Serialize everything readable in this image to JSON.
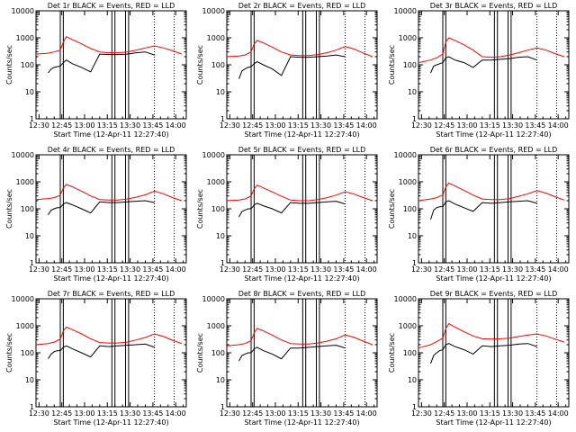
{
  "chart_data": {
    "type": "line",
    "layout": "3x3 grid",
    "y_scale": "log",
    "ylim": [
      1,
      10000
    ],
    "yticks": [
      "1",
      "10",
      "100",
      "1000",
      "10000"
    ],
    "xticks": [
      "12:30",
      "12:45",
      "13:00",
      "13:15",
      "13:30",
      "13:45",
      "14:00"
    ],
    "xlabel": "Start Time (12-Apr-11 12:27:40)",
    "ylabel": "Counts/sec",
    "colors": {
      "events": "#000000",
      "lld": "#ff0000"
    },
    "panels": [
      {
        "title": "Det 1r BLACK = Events, RED = LLD",
        "vlines": [
          "12:44",
          "12:46",
          "13:18",
          "13:20",
          "13:27",
          "13:29"
        ],
        "dotted": [
          "13:46",
          "13:59"
        ],
        "series": [
          {
            "name": "Events",
            "x": [
              "12:36",
              "12:38",
              "12:40",
              "12:42",
              "12:44",
              "12:46",
              "12:48",
              "12:52",
              "12:58",
              "13:04",
              "13:10",
              "13:16",
              "13:22",
              "13:28",
              "13:34",
              "13:40",
              "13:46"
            ],
            "y": [
              50,
              70,
              80,
              85,
              90,
              120,
              150,
              110,
              80,
              55,
              250,
              240,
              240,
              250,
              280,
              300,
              230
            ]
          },
          {
            "name": "LLD",
            "x": [
              "12:28",
              "12:36",
              "12:40",
              "12:44",
              "12:46",
              "12:48",
              "12:52",
              "12:58",
              "13:04",
              "13:10",
              "13:16",
              "13:22",
              "13:28",
              "13:34",
              "13:40",
              "13:46",
              "13:52",
              "13:58",
              "14:04"
            ],
            "y": [
              250,
              270,
              300,
              350,
              700,
              1100,
              850,
              600,
              400,
              300,
              280,
              280,
              300,
              350,
              420,
              500,
              420,
              330,
              250
            ]
          }
        ]
      },
      {
        "title": "Det 2r BLACK = Events, RED = LLD",
        "vlines": [
          "12:44",
          "12:46",
          "13:18",
          "13:20",
          "13:27",
          "13:29"
        ],
        "dotted": [
          "13:46",
          "13:59"
        ],
        "series": [
          {
            "name": "Events",
            "x": [
              "12:36",
              "12:38",
              "12:40",
              "12:42",
              "12:44",
              "12:46",
              "12:48",
              "12:52",
              "12:58",
              "13:04",
              "13:10",
              "13:16",
              "13:22",
              "13:28",
              "13:34",
              "13:40",
              "13:46"
            ],
            "y": [
              30,
              60,
              70,
              80,
              85,
              110,
              130,
              100,
              70,
              40,
              200,
              190,
              190,
              200,
              210,
              230,
              200
            ]
          },
          {
            "name": "LLD",
            "x": [
              "12:28",
              "12:36",
              "12:40",
              "12:44",
              "12:46",
              "12:48",
              "12:52",
              "12:58",
              "13:04",
              "13:10",
              "13:16",
              "13:22",
              "13:28",
              "13:34",
              "13:40",
              "13:46",
              "13:52",
              "13:58",
              "14:04"
            ],
            "y": [
              200,
              210,
              230,
              300,
              600,
              800,
              650,
              450,
              300,
              230,
              220,
              220,
              240,
              280,
              350,
              480,
              380,
              270,
              200
            ]
          }
        ]
      },
      {
        "title": "Det 3r BLACK = Events, RED = LLD",
        "vlines": [
          "12:44",
          "12:46",
          "13:18",
          "13:20",
          "13:27",
          "13:29"
        ],
        "dotted": [
          "13:46",
          "13:59"
        ],
        "series": [
          {
            "name": "Events",
            "x": [
              "12:36",
              "12:38",
              "12:40",
              "12:42",
              "12:44",
              "12:46",
              "12:48",
              "12:52",
              "12:58",
              "13:04",
              "13:10",
              "13:16",
              "13:22",
              "13:28",
              "13:34",
              "13:40",
              "13:46"
            ],
            "y": [
              50,
              90,
              100,
              110,
              120,
              180,
              200,
              150,
              120,
              80,
              150,
              150,
              160,
              170,
              190,
              200,
              150
            ]
          },
          {
            "name": "LLD",
            "x": [
              "12:28",
              "12:36",
              "12:40",
              "12:44",
              "12:46",
              "12:48",
              "12:52",
              "12:58",
              "13:04",
              "13:10",
              "13:16",
              "13:22",
              "13:28",
              "13:34",
              "13:40",
              "13:46",
              "13:52",
              "13:58",
              "14:04"
            ],
            "y": [
              120,
              150,
              180,
              250,
              700,
              1000,
              800,
              550,
              350,
              200,
              190,
              200,
              230,
              280,
              350,
              420,
              350,
              260,
              200
            ]
          }
        ]
      },
      {
        "title": "Det 4r BLACK = Events, RED = LLD",
        "vlines": [
          "12:44",
          "12:46",
          "13:18",
          "13:20",
          "13:27",
          "13:29"
        ],
        "dotted": [
          "13:46",
          "13:59"
        ],
        "series": [
          {
            "name": "Events",
            "x": [
              "12:36",
              "12:38",
              "12:40",
              "12:42",
              "12:44",
              "12:46",
              "12:48",
              "12:52",
              "12:58",
              "13:04",
              "13:10",
              "13:16",
              "13:22",
              "13:28",
              "13:34",
              "13:40",
              "13:46"
            ],
            "y": [
              60,
              90,
              100,
              110,
              110,
              150,
              170,
              140,
              100,
              70,
              180,
              170,
              170,
              180,
              190,
              200,
              170
            ]
          },
          {
            "name": "LLD",
            "x": [
              "12:28",
              "12:36",
              "12:40",
              "12:44",
              "12:46",
              "12:48",
              "12:52",
              "12:58",
              "13:04",
              "13:10",
              "13:16",
              "13:22",
              "13:28",
              "13:34",
              "13:40",
              "13:46",
              "13:52",
              "13:58",
              "14:04"
            ],
            "y": [
              220,
              240,
              260,
              320,
              600,
              800,
              650,
              450,
              300,
              220,
              210,
              210,
              230,
              270,
              330,
              450,
              360,
              260,
              200
            ]
          }
        ]
      },
      {
        "title": "Det 5r BLACK = Events, RED = LLD",
        "vlines": [
          "12:44",
          "12:46",
          "13:18",
          "13:20",
          "13:27",
          "13:29"
        ],
        "dotted": [
          "13:46",
          "13:59"
        ],
        "series": [
          {
            "name": "Events",
            "x": [
              "12:36",
              "12:38",
              "12:40",
              "12:42",
              "12:44",
              "12:46",
              "12:48",
              "12:52",
              "12:58",
              "13:04",
              "13:10",
              "13:16",
              "13:22",
              "13:28",
              "13:34",
              "13:40",
              "13:46"
            ],
            "y": [
              50,
              80,
              90,
              100,
              100,
              140,
              160,
              130,
              100,
              70,
              170,
              160,
              160,
              170,
              180,
              190,
              150
            ]
          },
          {
            "name": "LLD",
            "x": [
              "12:28",
              "12:36",
              "12:40",
              "12:44",
              "12:46",
              "12:48",
              "12:52",
              "12:58",
              "13:04",
              "13:10",
              "13:16",
              "13:22",
              "13:28",
              "13:34",
              "13:40",
              "13:46",
              "13:52",
              "13:58",
              "14:04"
            ],
            "y": [
              200,
              210,
              230,
              300,
              550,
              750,
              600,
              420,
              290,
              210,
              200,
              200,
              220,
              260,
              320,
              430,
              350,
              260,
              200
            ]
          }
        ]
      },
      {
        "title": "Det 6r BLACK = Events, RED = LLD",
        "vlines": [
          "12:44",
          "12:46",
          "13:18",
          "13:20",
          "13:27",
          "13:29"
        ],
        "dotted": [
          "13:46",
          "13:59"
        ],
        "series": [
          {
            "name": "Events",
            "x": [
              "12:36",
              "12:38",
              "12:40",
              "12:42",
              "12:44",
              "12:46",
              "12:48",
              "12:52",
              "12:58",
              "13:04",
              "13:10",
              "13:16",
              "13:22",
              "13:28",
              "13:34",
              "13:40",
              "13:46"
            ],
            "y": [
              40,
              90,
              110,
              120,
              120,
              180,
              200,
              150,
              110,
              80,
              170,
              160,
              170,
              180,
              190,
              200,
              160
            ]
          },
          {
            "name": "LLD",
            "x": [
              "12:28",
              "12:36",
              "12:40",
              "12:44",
              "12:46",
              "12:48",
              "12:52",
              "12:58",
              "13:04",
              "13:10",
              "13:16",
              "13:22",
              "13:28",
              "13:34",
              "13:40",
              "13:46",
              "13:52",
              "13:58",
              "14:04"
            ],
            "y": [
              200,
              230,
              260,
              330,
              650,
              900,
              700,
              480,
              320,
              230,
              220,
              220,
              240,
              290,
              360,
              470,
              380,
              280,
              210
            ]
          }
        ]
      },
      {
        "title": "Det 7r BLACK = Events, RED = LLD",
        "vlines": [
          "12:44",
          "12:46",
          "13:18",
          "13:20",
          "13:27",
          "13:29"
        ],
        "dotted": [
          "13:46",
          "13:59"
        ],
        "series": [
          {
            "name": "Events",
            "x": [
              "12:36",
              "12:38",
              "12:40",
              "12:42",
              "12:44",
              "12:46",
              "12:48",
              "12:52",
              "12:58",
              "13:04",
              "13:10",
              "13:16",
              "13:22",
              "13:28",
              "13:34",
              "13:40",
              "13:46"
            ],
            "y": [
              60,
              90,
              110,
              120,
              120,
              160,
              180,
              140,
              100,
              70,
              180,
              170,
              180,
              190,
              200,
              210,
              160
            ]
          },
          {
            "name": "LLD",
            "x": [
              "12:28",
              "12:36",
              "12:40",
              "12:44",
              "12:46",
              "12:48",
              "12:52",
              "12:58",
              "13:04",
              "13:10",
              "13:16",
              "13:22",
              "13:28",
              "13:34",
              "13:40",
              "13:46",
              "13:52",
              "13:58",
              "14:04"
            ],
            "y": [
              200,
              220,
              250,
              320,
              650,
              900,
              720,
              500,
              330,
              240,
              230,
              230,
              250,
              300,
              370,
              500,
              400,
              290,
              220
            ]
          }
        ]
      },
      {
        "title": "Det 8r BLACK = Events, RED = LLD",
        "vlines": [
          "12:44",
          "12:46",
          "13:18",
          "13:20",
          "13:27",
          "13:29"
        ],
        "dotted": [
          "13:46",
          "13:59"
        ],
        "series": [
          {
            "name": "Events",
            "x": [
              "12:36",
              "12:38",
              "12:40",
              "12:42",
              "12:44",
              "12:46",
              "12:48",
              "12:52",
              "12:58",
              "13:04",
              "13:10",
              "13:16",
              "13:22",
              "13:28",
              "13:34",
              "13:40",
              "13:46"
            ],
            "y": [
              50,
              80,
              90,
              100,
              100,
              140,
              160,
              120,
              90,
              60,
              150,
              150,
              160,
              170,
              180,
              190,
              150
            ]
          },
          {
            "name": "LLD",
            "x": [
              "12:28",
              "12:36",
              "12:40",
              "12:44",
              "12:46",
              "12:48",
              "12:52",
              "12:58",
              "13:04",
              "13:10",
              "13:16",
              "13:22",
              "13:28",
              "13:34",
              "13:40",
              "13:46",
              "13:52",
              "13:58",
              "14:04"
            ],
            "y": [
              180,
              200,
              220,
              280,
              550,
              800,
              650,
              450,
              300,
              220,
              210,
              210,
              230,
              270,
              330,
              460,
              370,
              270,
              200
            ]
          }
        ]
      },
      {
        "title": "Det 9r BLACK = Events, RED = LLD",
        "vlines": [
          "12:44",
          "12:46",
          "13:18",
          "13:20",
          "13:27",
          "13:29"
        ],
        "dotted": [
          "13:46",
          "13:59"
        ],
        "series": [
          {
            "name": "Events",
            "x": [
              "12:36",
              "12:38",
              "12:40",
              "12:42",
              "12:44",
              "12:46",
              "12:48",
              "12:52",
              "12:58",
              "13:04",
              "13:10",
              "13:16",
              "13:22",
              "13:28",
              "13:34",
              "13:40",
              "13:46"
            ],
            "y": [
              40,
              80,
              100,
              120,
              130,
              200,
              220,
              170,
              130,
              90,
              180,
              170,
              180,
              190,
              210,
              220,
              170
            ]
          },
          {
            "name": "LLD",
            "x": [
              "12:28",
              "12:36",
              "12:40",
              "12:44",
              "12:46",
              "12:48",
              "12:52",
              "12:58",
              "13:04",
              "13:10",
              "13:16",
              "13:22",
              "13:28",
              "13:34",
              "13:40",
              "13:46",
              "13:52",
              "13:58",
              "14:04"
            ],
            "y": [
              150,
              200,
              260,
              350,
              800,
              1200,
              900,
              600,
              420,
              330,
              320,
              330,
              350,
              400,
              450,
              500,
              420,
              320,
              250
            ]
          }
        ]
      }
    ]
  }
}
